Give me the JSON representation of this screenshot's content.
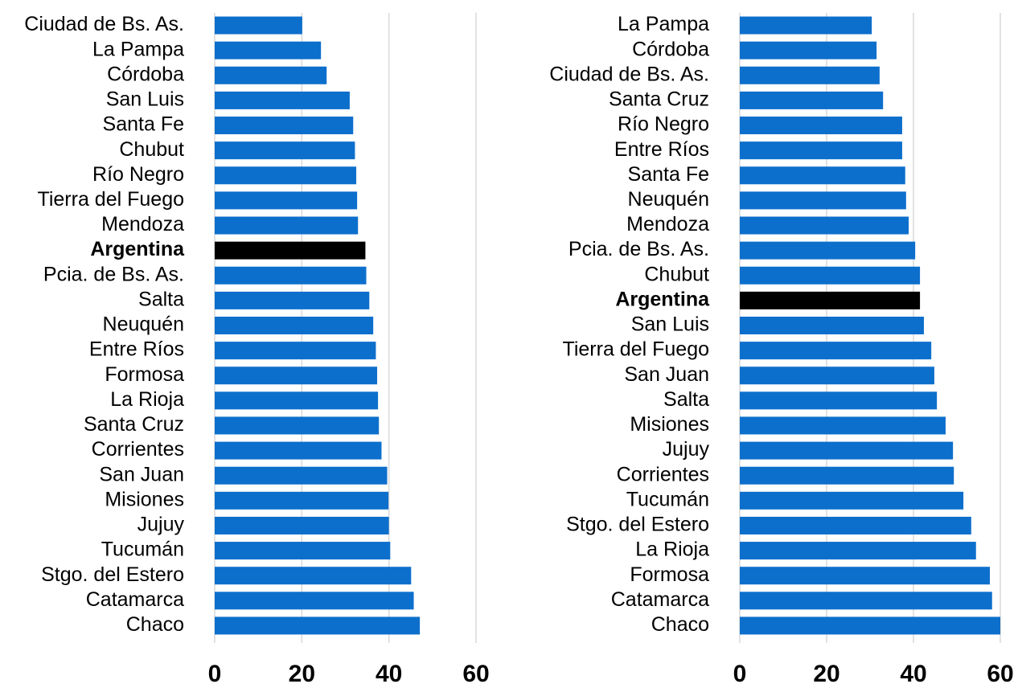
{
  "chart_data": [
    {
      "type": "bar",
      "orientation": "horizontal",
      "categories": [
        "Ciudad de Bs. As.",
        "La Pampa",
        "Córdoba",
        "San Luis",
        "Santa Fe",
        "Chubut",
        "Río Negro",
        "Tierra del Fuego",
        "Mendoza",
        "Argentina",
        "Pcia. de Bs. As.",
        "Salta",
        "Neuquén",
        "Entre Ríos",
        "Formosa",
        "La Rioja",
        "Santa Cruz",
        "Corrientes",
        "San Juan",
        "Misiones",
        "Jujuy",
        "Tucumán",
        "Stgo. del Estero",
        "Catamarca",
        "Chaco"
      ],
      "values": [
        20.1,
        24.4,
        25.7,
        31,
        31.8,
        32.2,
        32.5,
        32.7,
        32.9,
        34.6,
        34.8,
        35.5,
        36.4,
        37,
        37.3,
        37.5,
        37.7,
        38.3,
        39.6,
        39.9,
        40,
        40.3,
        45.1,
        45.7,
        47.1
      ],
      "color": "#0d6fcc",
      "highlight": "Argentina",
      "highlight_color": "#000000",
      "xlim": [
        0,
        60
      ],
      "xticks": [
        0,
        20,
        40,
        60
      ],
      "grid": true
    },
    {
      "type": "bar",
      "orientation": "horizontal",
      "categories": [
        "La Pampa",
        "Córdoba",
        "Ciudad de Bs. As.",
        "Santa Cruz",
        "Río Negro",
        "Entre Ríos",
        "Santa Fe",
        "Neuquén",
        "Mendoza",
        "Pcia. de Bs. As.",
        "Chubut",
        "Argentina",
        "San Luis",
        "Tierra del Fuego",
        "San Juan",
        "Salta",
        "Misiones",
        "Jujuy",
        "Corrientes",
        "Tucumán",
        "Stgo. del Estero",
        "La Rioja",
        "Formosa",
        "Catamarca",
        "Chaco"
      ],
      "values": [
        30.4,
        31.5,
        32.2,
        33,
        37.4,
        37.4,
        38.1,
        38.3,
        38.9,
        40.4,
        41.5,
        41.5,
        42.4,
        44.1,
        44.8,
        45.4,
        47.4,
        49.1,
        49.3,
        51.5,
        53.3,
        54.4,
        57.6,
        58.1,
        60
      ],
      "color": "#0d6fcc",
      "highlight": "Argentina",
      "highlight_color": "#000000",
      "xlim": [
        0,
        60
      ],
      "xticks": [
        0,
        20,
        40,
        60
      ],
      "grid": true
    }
  ]
}
